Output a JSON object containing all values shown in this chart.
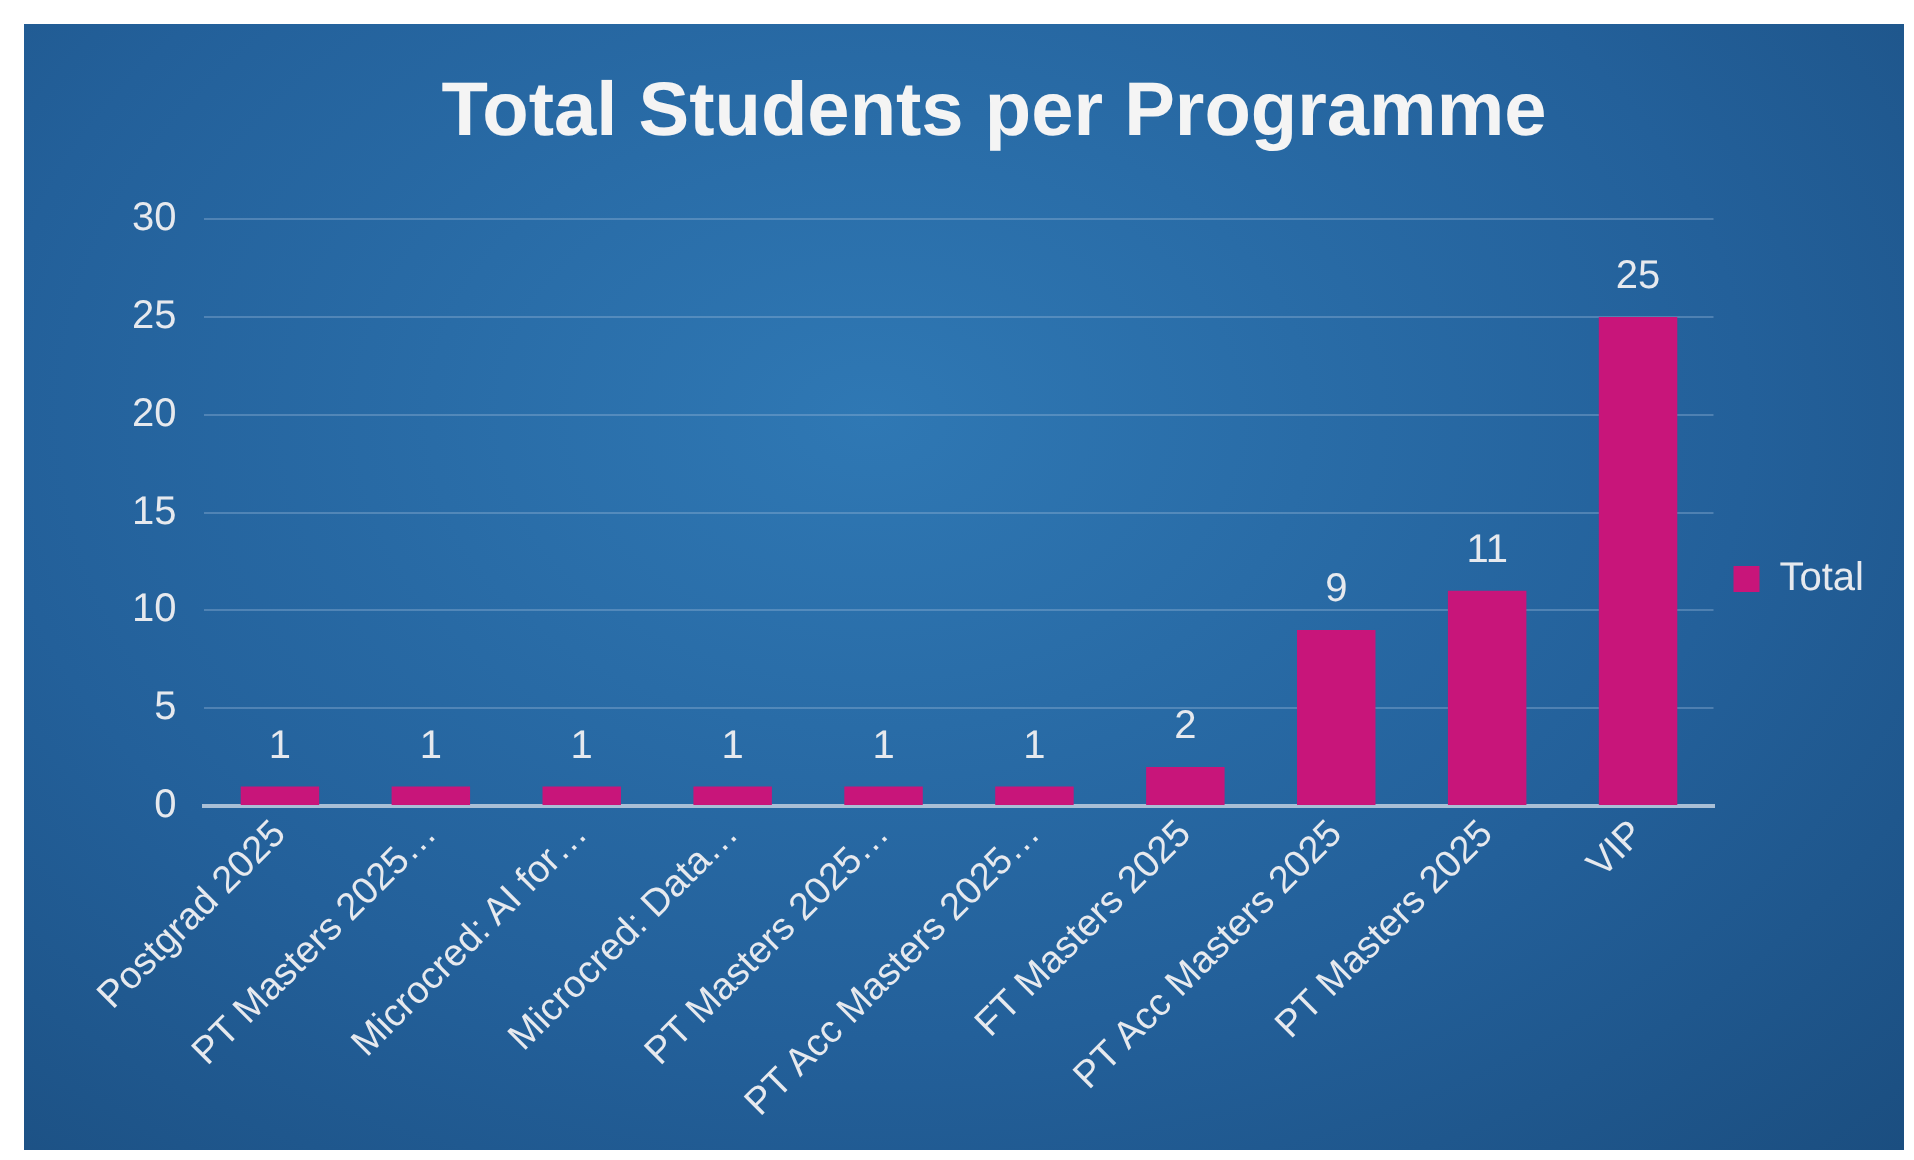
{
  "chart_data": {
    "type": "bar",
    "title": "Total Students per Programme",
    "categories": [
      "Postgrad 2025",
      "PT Masters 2025…",
      "Microcred: AI for…",
      "Microcred: Data…",
      "PT Masters 2025…",
      "PT Acc Masters 2025…",
      "FT Masters 2025",
      "PT Acc Masters 2025",
      "PT Masters 2025",
      "VIP"
    ],
    "series": [
      {
        "name": "Total",
        "color": "#c8157a",
        "values": [
          1,
          1,
          1,
          1,
          1,
          1,
          2,
          9,
          11,
          25
        ]
      }
    ],
    "ylim": [
      0,
      30
    ],
    "yticks": [
      0,
      5,
      10,
      15,
      20,
      25,
      30
    ],
    "grid": "y",
    "legend": "right",
    "data_labels": true
  }
}
